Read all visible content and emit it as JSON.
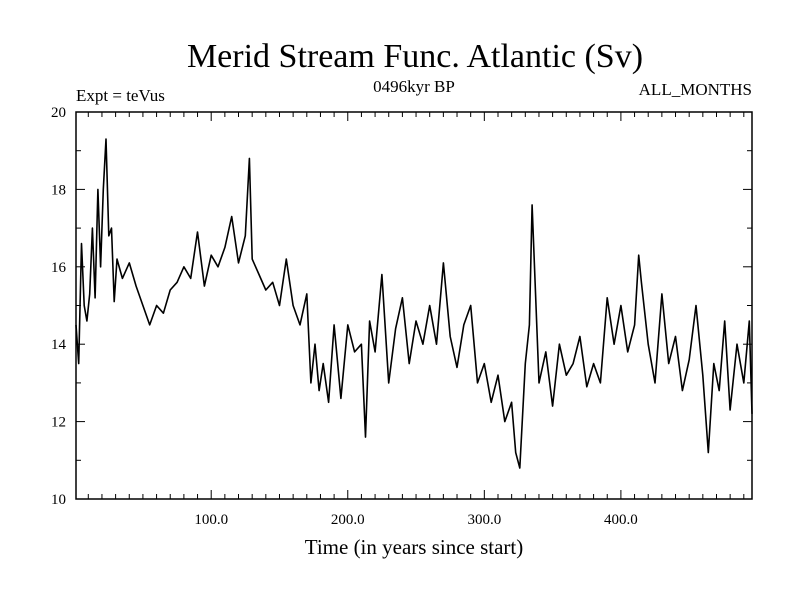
{
  "chart_data": {
    "type": "line",
    "title": "Merid Stream Func. Atlantic (Sv)",
    "expt_label": "Expt = teVus",
    "period_label": "0496kyr BP",
    "months_label": "ALL_MONTHS",
    "xlabel": "Time (in years since start)",
    "ylabel": "",
    "xlim": [
      1,
      496
    ],
    "ylim": [
      10,
      20
    ],
    "xticks": [
      100,
      200,
      300,
      400
    ],
    "xtick_labels": [
      "100.0",
      "200.0",
      "300.0",
      "400.0"
    ],
    "yticks": [
      10,
      12,
      14,
      16,
      18,
      20
    ],
    "ytick_labels": [
      "10",
      "12",
      "14",
      "16",
      "18",
      "20"
    ],
    "line_color": "#000000",
    "grid": false,
    "series": [
      {
        "x": [
          1,
          3,
          5,
          7,
          9,
          11,
          13,
          15,
          17,
          19,
          21,
          23,
          25,
          27,
          29,
          31,
          35,
          40,
          45,
          50,
          55,
          60,
          65,
          70,
          75,
          80,
          85,
          90,
          95,
          100,
          105,
          110,
          115,
          120,
          125,
          128,
          130,
          135,
          140,
          145,
          150,
          155,
          160,
          165,
          170,
          173,
          176,
          179,
          182,
          186,
          190,
          195,
          200,
          205,
          210,
          213,
          216,
          220,
          225,
          230,
          235,
          240,
          245,
          250,
          255,
          260,
          265,
          270,
          275,
          280,
          285,
          290,
          295,
          300,
          305,
          310,
          315,
          320,
          323,
          326,
          330,
          333,
          335,
          340,
          345,
          350,
          355,
          360,
          365,
          370,
          375,
          380,
          385,
          390,
          395,
          400,
          405,
          410,
          413,
          415,
          420,
          425,
          430,
          435,
          440,
          445,
          450,
          455,
          460,
          464,
          468,
          472,
          476,
          480,
          485,
          490,
          494,
          496
        ],
        "y": [
          14.5,
          13.5,
          16.6,
          15.0,
          14.6,
          15.3,
          17.0,
          15.2,
          18.0,
          16.0,
          18.0,
          19.3,
          16.8,
          17.0,
          15.1,
          16.2,
          15.7,
          16.1,
          15.5,
          15.0,
          14.5,
          15.0,
          14.8,
          15.4,
          15.6,
          16.0,
          15.7,
          16.9,
          15.5,
          16.3,
          16.0,
          16.5,
          17.3,
          16.1,
          16.8,
          18.8,
          16.2,
          15.8,
          15.4,
          15.6,
          15.0,
          16.2,
          15.0,
          14.5,
          15.3,
          13.0,
          14.0,
          12.8,
          13.5,
          12.5,
          14.5,
          12.6,
          14.5,
          13.8,
          14.0,
          11.6,
          14.6,
          13.8,
          15.8,
          13.0,
          14.4,
          15.2,
          13.5,
          14.6,
          14.0,
          15.0,
          14.0,
          16.1,
          14.2,
          13.4,
          14.5,
          15.0,
          13.0,
          13.5,
          12.5,
          13.2,
          12.0,
          12.5,
          11.2,
          10.8,
          13.5,
          14.5,
          17.6,
          13.0,
          13.8,
          12.4,
          14.0,
          13.2,
          13.5,
          14.2,
          12.9,
          13.5,
          13.0,
          15.2,
          14.0,
          15.0,
          13.8,
          14.5,
          16.3,
          15.6,
          14.0,
          13.0,
          15.3,
          13.5,
          14.2,
          12.8,
          13.6,
          15.0,
          13.2,
          11.2,
          13.5,
          12.8,
          14.6,
          12.3,
          14.0,
          13.0,
          14.6,
          12.2
        ]
      }
    ]
  }
}
